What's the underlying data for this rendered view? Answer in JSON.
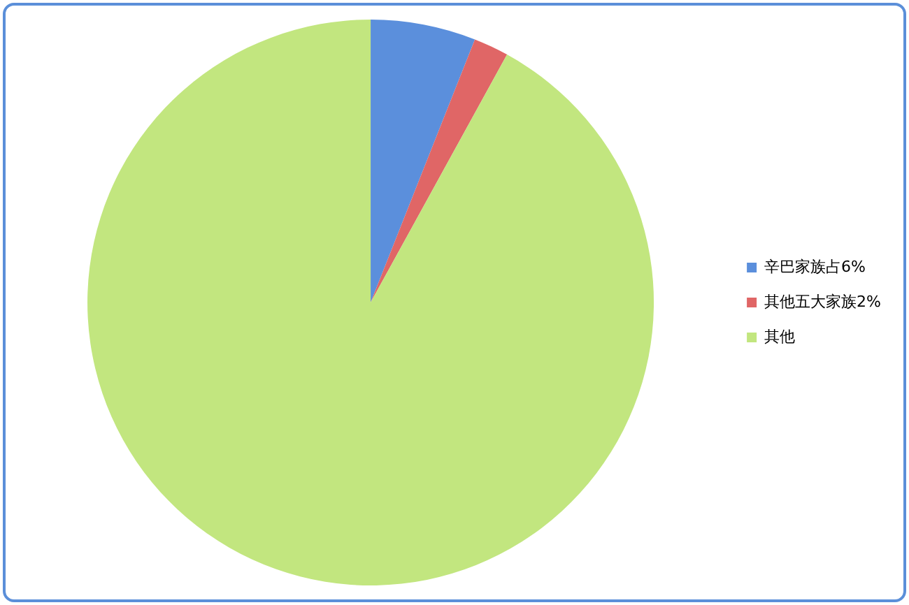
{
  "chart_data": {
    "type": "pie",
    "categories": [
      "辛巴家族占6%",
      "其他五大家族2%",
      "其他"
    ],
    "values": [
      6,
      2,
      92
    ],
    "colors": [
      "#5b8fdc",
      "#e06666",
      "#c2e67f"
    ],
    "legend": "right"
  }
}
